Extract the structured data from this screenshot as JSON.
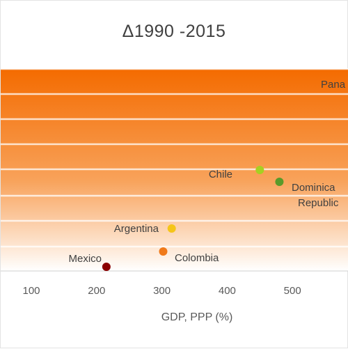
{
  "chart_data": {
    "type": "scatter",
    "title": "Δ1990 -2015",
    "xlabel": "GDP, PPP (%)",
    "ylabel": "",
    "x_ticks": [
      "100",
      "200",
      "300",
      "400",
      "500"
    ],
    "grid": "horizontal",
    "background": "orange-gradient",
    "points": [
      {
        "name": "Mexico",
        "x": 215,
        "y": 1,
        "color": "#8b0000"
      },
      {
        "name": "Colombia",
        "x": 302,
        "y": 25,
        "color": "#f07a1a"
      },
      {
        "name": "Argentina",
        "x": 315,
        "y": 58,
        "color": "#f5c518"
      },
      {
        "name": "Chile",
        "x": 450,
        "y": 139,
        "color": "#a6d022"
      },
      {
        "name": "Dominica Republic",
        "x": 480,
        "y": 122,
        "color": "#5a9a2a"
      },
      {
        "name": "Pana",
        "x": null,
        "y": null,
        "color": null
      }
    ],
    "colors": {
      "gradient_top": "#f46b00",
      "gradient_bottom": "#ffffff",
      "grid": "#ffffff"
    }
  }
}
